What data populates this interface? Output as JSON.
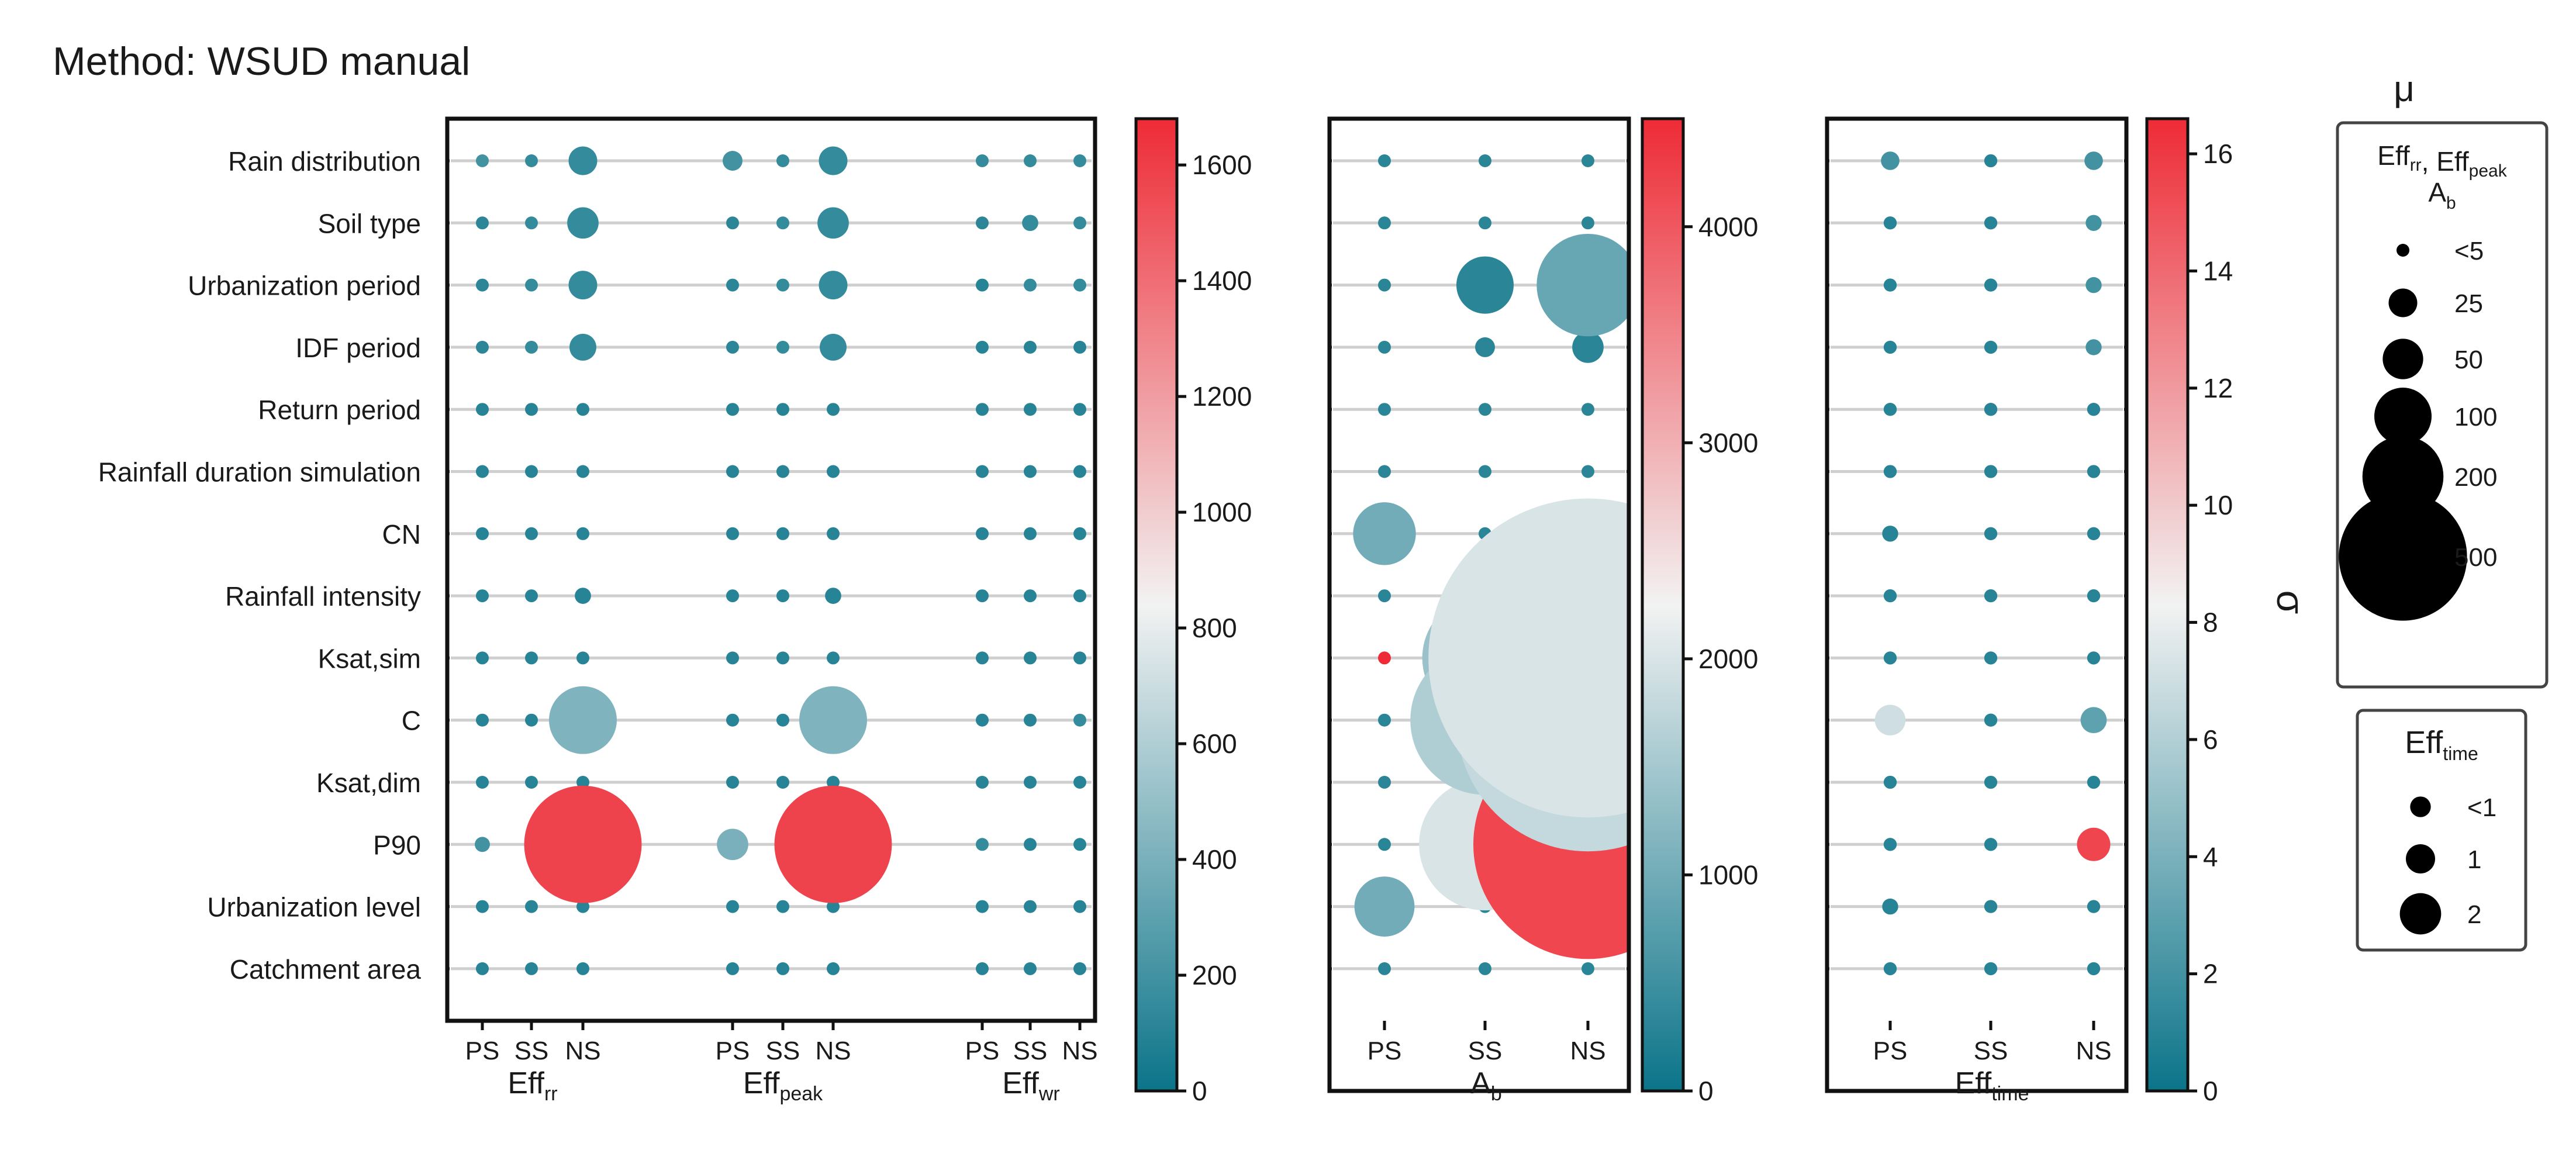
{
  "chart_data": {
    "type": "scatter",
    "title": "Method: WSUD manual",
    "factors": [
      "Rain distribution",
      "Soil type",
      "Urbanization period",
      "IDF period",
      "Return period",
      "Rainfall duration simulation",
      "CN",
      "Rainfall intensity",
      "Ksat,sim",
      "C",
      "Ksat,dim",
      "P90",
      "Urbanization level",
      "Catchment area"
    ],
    "categories": [
      "PS",
      "SS",
      "NS"
    ],
    "size_metric": "μ",
    "color_metric": "σ",
    "panels": [
      {
        "id": "p1",
        "groups": [
          {
            "name": "Eff",
            "sub": "rr",
            "mu": [
              [
                3,
                1,
                25
              ],
              [
                1,
                1,
                30
              ],
              [
                1,
                1,
                25
              ],
              [
                1,
                1,
                22
              ],
              [
                1,
                1,
                4
              ],
              [
                1,
                1,
                3
              ],
              [
                1,
                1,
                4
              ],
              [
                1,
                1,
                8
              ],
              [
                1,
                1,
                3
              ],
              [
                1,
                1,
                140
              ],
              [
                1,
                1,
                1
              ],
              [
                7,
                1,
                420
              ],
              [
                1,
                1,
                3
              ],
              [
                1,
                1,
                2
              ]
            ],
            "sigma": [
              [
                200,
                150,
                150
              ],
              [
                120,
                150,
                150
              ],
              [
                120,
                150,
                150
              ],
              [
                120,
                150,
                150
              ],
              [
                100,
                100,
                100
              ],
              [
                100,
                100,
                100
              ],
              [
                100,
                100,
                100
              ],
              [
                100,
                100,
                100
              ],
              [
                100,
                100,
                100
              ],
              [
                100,
                100,
                420
              ],
              [
                100,
                100,
                100
              ],
              [
                200,
                100,
                1580
              ],
              [
                100,
                100,
                100
              ],
              [
                100,
                100,
                100
              ]
            ]
          },
          {
            "name": "Eff",
            "sub": "peak",
            "mu": [
              [
                12,
                1,
                25
              ],
              [
                1,
                1,
                30
              ],
              [
                1,
                1,
                25
              ],
              [
                1,
                1,
                22
              ],
              [
                1,
                1,
                4
              ],
              [
                1,
                1,
                3
              ],
              [
                1,
                1,
                4
              ],
              [
                1,
                1,
                8
              ],
              [
                1,
                1,
                3
              ],
              [
                1,
                1,
                140
              ],
              [
                1,
                1,
                1
              ],
              [
                30,
                1,
                420
              ],
              [
                1,
                1,
                3
              ],
              [
                1,
                1,
                2
              ]
            ],
            "sigma": [
              [
                200,
                150,
                150
              ],
              [
                120,
                150,
                150
              ],
              [
                120,
                150,
                150
              ],
              [
                120,
                150,
                150
              ],
              [
                100,
                100,
                100
              ],
              [
                100,
                100,
                100
              ],
              [
                100,
                100,
                100
              ],
              [
                100,
                100,
                100
              ],
              [
                100,
                100,
                100
              ],
              [
                100,
                100,
                420
              ],
              [
                100,
                100,
                100
              ],
              [
                400,
                100,
                1580
              ],
              [
                100,
                100,
                100
              ],
              [
                100,
                100,
                100
              ]
            ]
          },
          {
            "name": "Eff",
            "sub": "wr",
            "mu": [
              [
                3,
                5,
                3
              ],
              [
                1,
                8,
                5
              ],
              [
                1,
                2,
                3
              ],
              [
                1,
                1,
                2
              ],
              [
                1,
                1,
                1
              ],
              [
                1,
                1,
                1
              ],
              [
                1,
                1,
                1
              ],
              [
                1,
                1,
                1
              ],
              [
                1,
                1,
                1
              ],
              [
                1,
                3,
                5
              ],
              [
                1,
                1,
                1
              ],
              [
                3,
                1,
                1
              ],
              [
                1,
                1,
                1
              ],
              [
                1,
                1,
                1
              ]
            ],
            "sigma": [
              [
                150,
                150,
                150
              ],
              [
                120,
                150,
                150
              ],
              [
                100,
                150,
                150
              ],
              [
                100,
                100,
                100
              ],
              [
                100,
                100,
                100
              ],
              [
                100,
                100,
                100
              ],
              [
                100,
                100,
                100
              ],
              [
                100,
                100,
                100
              ],
              [
                100,
                100,
                100
              ],
              [
                100,
                100,
                150
              ],
              [
                100,
                100,
                100
              ],
              [
                150,
                100,
                100
              ],
              [
                100,
                100,
                100
              ],
              [
                100,
                100,
                100
              ]
            ]
          }
        ],
        "colorbar": {
          "ticks": [
            0,
            200,
            400,
            600,
            800,
            1000,
            1200,
            1400,
            1600
          ],
          "max": 1680
        }
      },
      {
        "id": "p2",
        "groups": [
          {
            "name": "A",
            "sub": "b",
            "mu": [
              [
                0.5,
                0.5,
                0.5
              ],
              [
                0.5,
                0.5,
                0.5
              ],
              [
                0.5,
                100,
                320
              ],
              [
                0.5,
                12,
                30
              ],
              [
                0.5,
                0.5,
                2
              ],
              [
                0.5,
                0.5,
                0.5
              ],
              [
                120,
                4,
                4
              ],
              [
                0.5,
                12,
                20
              ],
              [
                0.5,
                480,
                3100
              ],
              [
                1,
                680,
                2100
              ],
              [
                0.5,
                0.5,
                0.5
              ],
              [
                3,
                530,
                1600
              ],
              [
                110,
                4,
                0.5
              ],
              [
                0.5,
                0.5,
                0.5
              ]
            ],
            "sigma": [
              [
                300,
                300,
                300
              ],
              [
                300,
                300,
                300
              ],
              [
                300,
                300,
                900
              ],
              [
                300,
                300,
                300
              ],
              [
                300,
                300,
                300
              ],
              [
                300,
                300,
                300
              ],
              [
                1000,
                300,
                300
              ],
              [
                300,
                300,
                300
              ],
              [
                4500,
                1400,
                2000
              ],
              [
                300,
                1600,
                1800
              ],
              [
                300,
                300,
                300
              ],
              [
                300,
                2000,
                4200
              ],
              [
                1000,
                300,
                300
              ],
              [
                300,
                300,
                300
              ]
            ]
          }
        ],
        "colorbar": {
          "ticks": [
            0,
            1000,
            2000,
            3000,
            4000
          ],
          "max": 4500
        }
      },
      {
        "id": "p3",
        "groups": [
          {
            "name": "Eff",
            "sub": "time",
            "mu": [
              [
                0.4,
                0.2,
                0.4
              ],
              [
                0.2,
                0.2,
                0.3
              ],
              [
                0.2,
                0.2,
                0.3
              ],
              [
                0.2,
                0.2,
                0.3
              ],
              [
                0.2,
                0.2,
                0.2
              ],
              [
                0.2,
                0.2,
                0.2
              ],
              [
                0.3,
                0.2,
                0.2
              ],
              [
                0.2,
                0.2,
                0.2
              ],
              [
                0.2,
                0.2,
                0.2
              ],
              [
                1.1,
                0.2,
                0.8
              ],
              [
                0.2,
                0.2,
                0.2
              ],
              [
                0.2,
                0.2,
                1.3
              ],
              [
                0.3,
                0.2,
                0.2
              ],
              [
                0.2,
                0.2,
                0.2
              ]
            ],
            "sigma": [
              [
                2,
                1,
                2
              ],
              [
                1,
                1,
                2
              ],
              [
                1,
                1,
                2
              ],
              [
                1,
                1,
                2
              ],
              [
                1,
                1,
                1
              ],
              [
                1,
                1,
                1
              ],
              [
                1,
                1,
                1
              ],
              [
                1,
                1,
                1
              ],
              [
                1,
                1,
                1
              ],
              [
                7,
                1,
                3
              ],
              [
                1,
                1,
                1
              ],
              [
                1,
                1,
                15.5
              ],
              [
                1,
                1,
                1
              ],
              [
                1,
                1,
                1
              ]
            ]
          }
        ],
        "colorbar": {
          "ticks": [
            0,
            2,
            4,
            6,
            8,
            10,
            12,
            14,
            16
          ],
          "max": 16.6
        }
      }
    ],
    "colormap": {
      "low": "#0b7489",
      "mid": "#f2f2f2",
      "high": "#ee2b36"
    },
    "colorbar_label": "σ",
    "legend": {
      "title": "μ",
      "box1": {
        "heading_parts": [
          {
            "text": "Eff",
            "sub": "rr"
          },
          {
            "text": ", Eff",
            "sub": "peak"
          }
        ],
        "heading2": {
          "text": "A",
          "sub": "b"
        },
        "entries": [
          {
            "label": "<5",
            "value": 3
          },
          {
            "label": "25",
            "value": 25
          },
          {
            "label": "50",
            "value": 50
          },
          {
            "label": "100",
            "value": 100
          },
          {
            "label": "200",
            "value": 200
          },
          {
            "label": "500",
            "value": 500
          }
        ]
      },
      "box2": {
        "heading": {
          "text": "Eff",
          "sub": "time"
        },
        "entries": [
          {
            "label": "<1",
            "value": 0.5
          },
          {
            "label": "1",
            "value": 1
          },
          {
            "label": "2",
            "value": 2
          }
        ]
      }
    }
  }
}
